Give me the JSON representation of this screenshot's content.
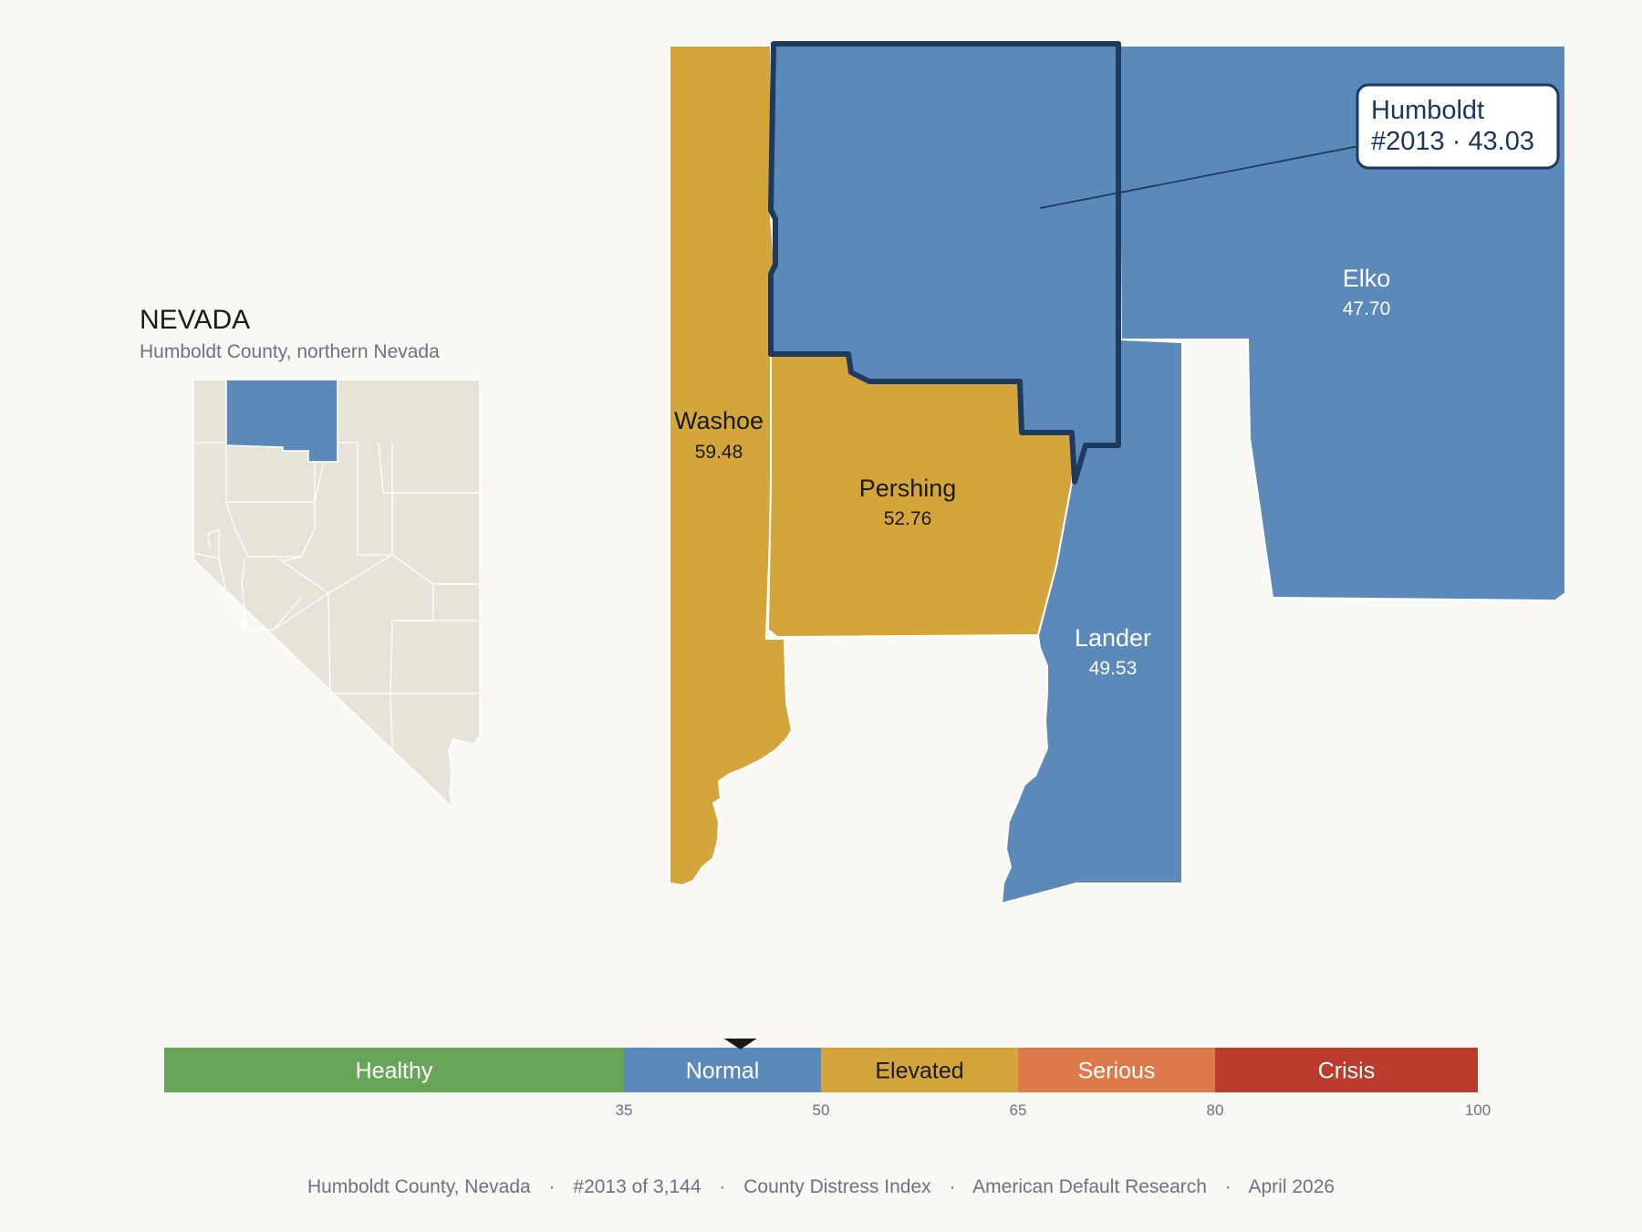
{
  "inset": {
    "state_title": "NEVADA",
    "subtitle": "Humboldt County, northern Nevada"
  },
  "counties": [
    {
      "name": "Washoe",
      "value": "59.48",
      "category": "Elevated"
    },
    {
      "name": "Pershing",
      "value": "52.76",
      "category": "Elevated"
    },
    {
      "name": "Lander",
      "value": "49.53",
      "category": "Normal"
    },
    {
      "name": "Elko",
      "value": "47.70",
      "category": "Normal"
    },
    {
      "name": "Humboldt",
      "value": "43.03",
      "category": "Normal"
    }
  ],
  "callout": {
    "line1": "Humboldt",
    "line2": "#2013 · 43.03"
  },
  "scale": {
    "marker_value": 43.03,
    "min": 0,
    "max": 100,
    "bands": [
      {
        "label": "Healthy",
        "from": 0,
        "to": 35,
        "color": "#67a659",
        "text_color": "#ffffff"
      },
      {
        "label": "Normal",
        "from": 35,
        "to": 50,
        "color": "#5b89ba",
        "text_color": "#ffffff"
      },
      {
        "label": "Elevated",
        "from": 50,
        "to": 65,
        "color": "#d4a53b",
        "text_color": "#1a1a1a"
      },
      {
        "label": "Serious",
        "from": 65,
        "to": 80,
        "color": "#de7a4a",
        "text_color": "#ffffff"
      },
      {
        "label": "Crisis",
        "from": 80,
        "to": 100,
        "color": "#b93c2c",
        "text_color": "#ffffff"
      }
    ],
    "ticks": [
      "35",
      "50",
      "65",
      "80",
      "100"
    ]
  },
  "footer": {
    "county": "Humboldt County, Nevada",
    "rank": "#2013 of 3,144",
    "index": "County Distress Index",
    "org": "American Default Research",
    "date": "April 2026",
    "sep": "·"
  },
  "colors": {
    "normal": "#5b89ba",
    "elevated": "#d4a53b",
    "highlight_outline": "#1e3a5f",
    "inset_land": "#e8e3d8",
    "background": "#f9f8f5"
  }
}
